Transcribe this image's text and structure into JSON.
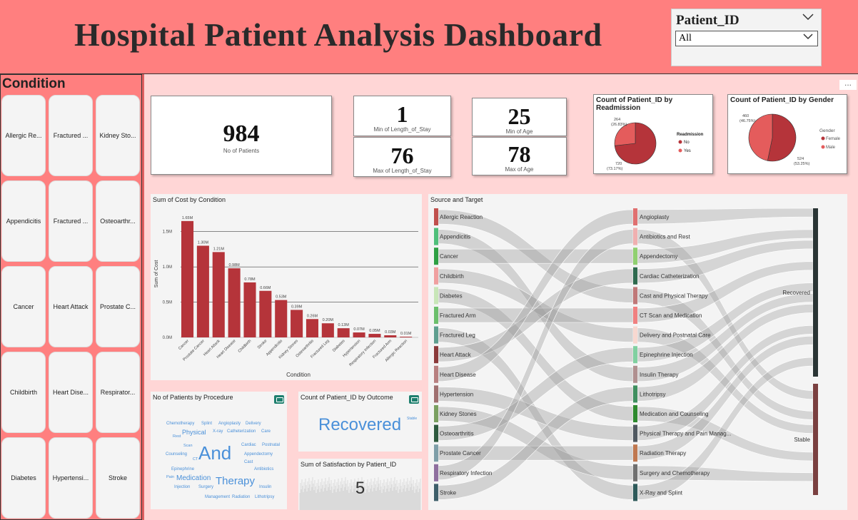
{
  "header": {
    "title": "Hospital Patient Analysis Dashboard"
  },
  "slicer": {
    "title": "Patient_ID",
    "value": "All"
  },
  "condition_panel": {
    "title": "Condition",
    "items": [
      "Allergic Re...",
      "Fractured ...",
      "Kidney Sto...",
      "Appendicitis",
      "Fractured ...",
      "Osteoarthr...",
      "Cancer",
      "Heart Attack",
      "Prostate C...",
      "Childbirth",
      "Heart Dise...",
      "Respirator...",
      "Diabetes",
      "Hypertensi...",
      "Stroke"
    ]
  },
  "kpis": {
    "patients": {
      "value": "984",
      "label": "No of Patients"
    },
    "min_los": {
      "value": "1",
      "label": "Min of Length_of_Stay"
    },
    "max_los": {
      "value": "76",
      "label": "Max of Length_of_Stay"
    },
    "min_age": {
      "value": "25",
      "label": "Min of Age"
    },
    "max_age": {
      "value": "78",
      "label": "Max of Age"
    }
  },
  "readmission": {
    "title": "Count of Patient_ID by Readmission",
    "legend_title": "Readmission",
    "legend": [
      "No",
      "Yes"
    ],
    "label_small": "264",
    "label_small_pct": "(26.83%)",
    "label_big": "720",
    "label_big_pct": "(73.17%)",
    "colors": [
      "#b5343a",
      "#e45c5c"
    ]
  },
  "gender": {
    "title": "Count of Patient_ID by Gender",
    "legend_title": "Gender",
    "legend": [
      "Female",
      "Male"
    ],
    "label_small": "460",
    "label_small_pct": "(46.75%)",
    "label_big": "524",
    "label_big_pct": "(53.25%)",
    "colors": [
      "#b5343a",
      "#e45c5c"
    ]
  },
  "chart_data": [
    {
      "type": "bar",
      "title": "Sum of Cost by Condition",
      "xlabel": "Condition",
      "ylabel": "Sum of Cost",
      "ylim": [
        0,
        1.75
      ],
      "yticks": [
        "0.0M",
        "0.5M",
        "1.0M",
        "1.5M"
      ],
      "categories": [
        "Cancer",
        "Prostate Cancer",
        "Heart Attack",
        "Heart Disease",
        "Childbirth",
        "Stroke",
        "Appendicitis",
        "Kidney Stones",
        "Osteoarthritis",
        "Fractured Leg",
        "Diabetes",
        "Hypertension",
        "Respiratory Infection",
        "Fractured Arm",
        "Allergic Reaction"
      ],
      "values": [
        1.65,
        1.3,
        1.21,
        0.98,
        0.78,
        0.66,
        0.53,
        0.39,
        0.26,
        0.2,
        0.13,
        0.07,
        0.05,
        0.03,
        0.01
      ],
      "labels": [
        "1.65M",
        "1.30M",
        "1.21M",
        "0.98M",
        "0.78M",
        "0.66M",
        "0.53M",
        "0.39M",
        "0.26M",
        "0.20M",
        "0.13M",
        "0.07M",
        "0.05M",
        "0.03M",
        "0.01M"
      ],
      "bar_color": "#b5343a"
    },
    {
      "type": "pie",
      "title": "Count of Patient_ID by Readmission",
      "categories": [
        "No",
        "Yes"
      ],
      "values": [
        720,
        264
      ]
    },
    {
      "type": "pie",
      "title": "Count of Patient_ID by Gender",
      "categories": [
        "Female",
        "Male"
      ],
      "values": [
        524,
        460
      ]
    }
  ],
  "wordcloud": {
    "title": "No of Patients by Procedure",
    "words": [
      "Chemotherapy",
      "Splint",
      "Angioplasty",
      "Delivery",
      "Rest",
      "Physical",
      "X-ray",
      "Catheterization",
      "Care",
      "Scan",
      "And",
      "Cardiac",
      "Postnatal",
      "Counseling",
      "Appendectomy",
      "CT",
      "Cast",
      "Epinephrine",
      "Antibiotics",
      "Pain",
      "Medication",
      "Therapy",
      "Injection",
      "Surgery",
      "Insulin",
      "Management",
      "Radiation",
      "Lithotripsy"
    ]
  },
  "outcome": {
    "title": "Count of Patient_ID by Outcome",
    "main_word": "Recovered",
    "small_word": "Stable"
  },
  "satisfaction": {
    "title": "Sum of Satisfaction by Patient_ID",
    "value": "5"
  },
  "sankey": {
    "title": "Source and Target",
    "sources": [
      "Allergic Reaction",
      "Appendicitis",
      "Cancer",
      "Childbirth",
      "Diabetes",
      "Fractured Arm",
      "Fractured Leg",
      "Heart Attack",
      "Heart Disease",
      "Hypertension",
      "Kidney Stones",
      "Osteoarthritis",
      "Prostate Cancer",
      "Respiratory Infection",
      "Stroke"
    ],
    "source_colors": [
      "#c0504d",
      "#4fbf7a",
      "#2ea043",
      "#f0a0a0",
      "#c8e6b8",
      "#6cbf6c",
      "#5f9f8f",
      "#8b3a3a",
      "#b88080",
      "#a07070",
      "#7aa060",
      "#2e5a3e",
      "#7f9fa8",
      "#8f6f9f",
      "#3e5f6a"
    ],
    "procedures": [
      "Angioplasty",
      "Antibiotics and Rest",
      "Appendectomy",
      "Cardiac Catheterization",
      "Cast and Physical Therapy",
      "CT Scan and Medication",
      "Delivery and Postnatal Care",
      "Epinephrine Injection",
      "Insulin Therapy",
      "Lithotripsy",
      "Medication and Counseling",
      "Physical Therapy and Pain Manag...",
      "Radiation Therapy",
      "Surgery and Chemotherapy",
      "X-Ray and Splint"
    ],
    "procedure_colors": [
      "#e07070",
      "#f0b0b0",
      "#90d070",
      "#2e6a4e",
      "#c07878",
      "#f08080",
      "#f8d8d0",
      "#80d0a0",
      "#b09090",
      "#3f8f5f",
      "#2e8a2e",
      "#505860",
      "#c07850",
      "#707070",
      "#2e5a5a"
    ],
    "outcomes": [
      "Recovered",
      "Stable"
    ],
    "outcome_colors": [
      "#2a3535",
      "#7a4040"
    ]
  }
}
